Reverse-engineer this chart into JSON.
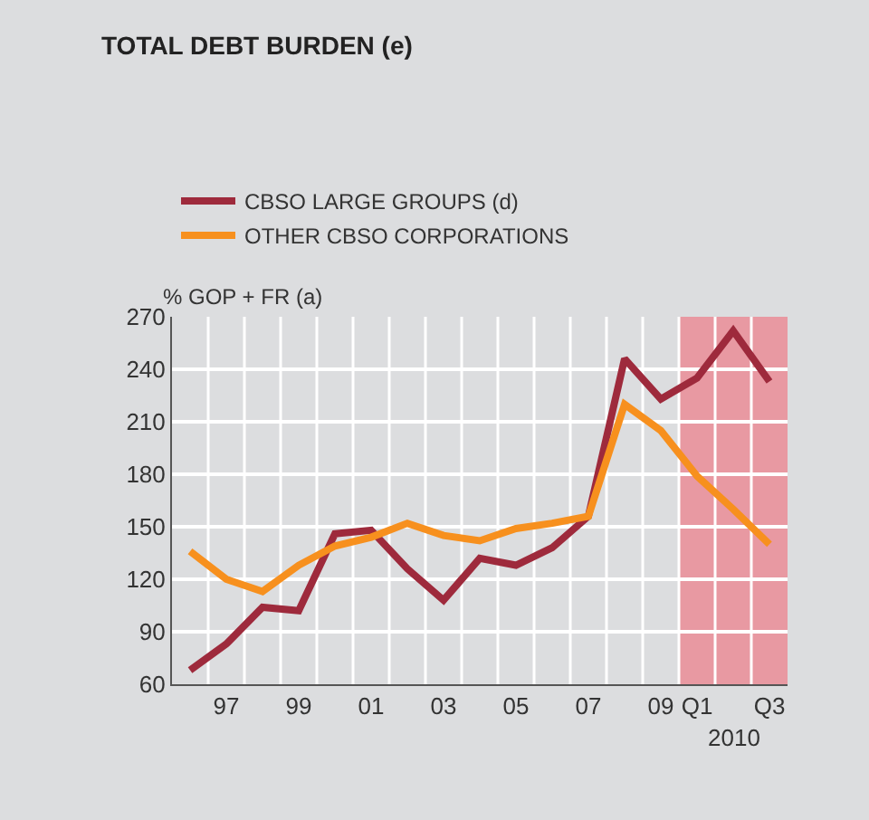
{
  "chart_data": {
    "type": "line",
    "title": "TOTAL DEBT BURDEN (e)",
    "ylabel": "% GOP + FR (a)",
    "categories": [
      null,
      "97",
      null,
      "99",
      null,
      "01",
      null,
      "03",
      null,
      "05",
      null,
      "07",
      null,
      "09",
      "Q1",
      null,
      "Q3"
    ],
    "series": [
      {
        "name": "CBSO LARGE GROUPS (d)",
        "color": "#9e2a3c",
        "values": [
          68,
          83,
          104,
          102,
          146,
          148,
          126,
          108,
          132,
          128,
          138,
          156,
          246,
          223,
          235,
          262,
          233
        ]
      },
      {
        "name": "OTHER CBSO CORPORATIONS",
        "color": "#f7901e",
        "values": [
          136,
          120,
          113,
          128,
          139,
          144,
          152,
          145,
          142,
          149,
          152,
          156,
          220,
          205,
          179,
          160,
          140
        ]
      }
    ],
    "ylim": [
      60,
      270
    ],
    "yticks": [
      60,
      90,
      120,
      150,
      180,
      210,
      240,
      270
    ],
    "bands": [
      {
        "axis": "x",
        "from": "Q1",
        "to": "Q3",
        "color": "#e899a2"
      }
    ],
    "annotations": [
      "2010"
    ],
    "grid": true,
    "legend": "top left",
    "marker": "none",
    "line_style": "solid"
  }
}
